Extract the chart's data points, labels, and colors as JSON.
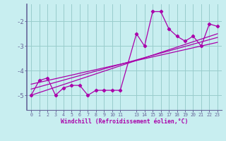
{
  "title": "",
  "xlabel": "Windchill (Refroidissement éolien,°C)",
  "ylabel": "",
  "bg_color": "#c8eef0",
  "grid_color": "#99cccc",
  "line_color": "#aa00aa",
  "spine_color": "#666699",
  "xlim": [
    -0.5,
    23.5
  ],
  "ylim": [
    -5.6,
    -1.3
  ],
  "yticks": [
    -5,
    -4,
    -3,
    -2
  ],
  "xticks": [
    0,
    1,
    2,
    3,
    4,
    5,
    6,
    7,
    8,
    9,
    10,
    11,
    13,
    14,
    15,
    16,
    17,
    18,
    19,
    20,
    21,
    22,
    23
  ],
  "xtick_labels": [
    "0",
    "1",
    "2",
    "3",
    "4",
    "5",
    "6",
    "7",
    "8",
    "9",
    "10",
    "11",
    "13",
    "14",
    "15",
    "16",
    "17",
    "18",
    "19",
    "20",
    "21",
    "22",
    "23"
  ],
  "data_x": [
    0,
    1,
    2,
    3,
    4,
    5,
    6,
    7,
    8,
    9,
    10,
    11,
    13,
    14,
    15,
    16,
    17,
    18,
    19,
    20,
    21,
    22,
    23
  ],
  "data_y": [
    -5.0,
    -4.4,
    -4.3,
    -5.0,
    -4.7,
    -4.6,
    -4.6,
    -5.0,
    -4.8,
    -4.8,
    -4.8,
    -4.8,
    -2.5,
    -3.0,
    -1.6,
    -1.6,
    -2.3,
    -2.6,
    -2.8,
    -2.6,
    -3.0,
    -2.1,
    -2.2
  ],
  "line1_x": [
    0,
    23
  ],
  "line1_y": [
    -5.0,
    -2.5
  ],
  "line2_x": [
    0,
    23
  ],
  "line2_y": [
    -4.75,
    -2.65
  ],
  "line3_x": [
    0,
    23
  ],
  "line3_y": [
    -4.55,
    -2.85
  ]
}
